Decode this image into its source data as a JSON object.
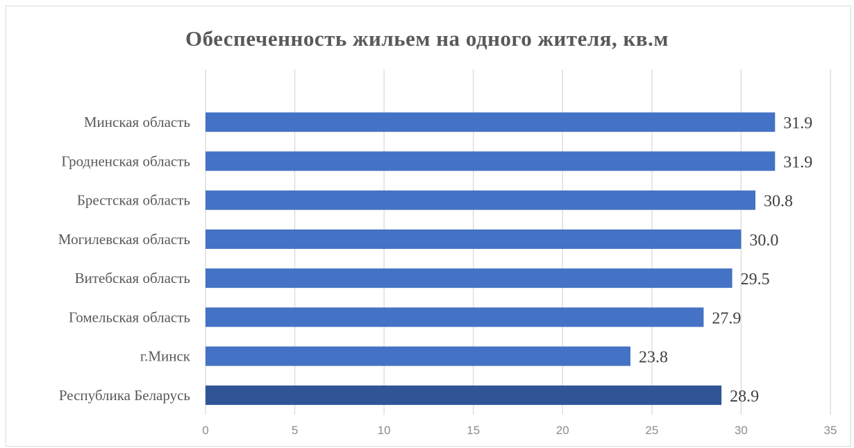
{
  "chart_data": {
    "type": "bar",
    "orientation": "horizontal",
    "title": "Обеспеченность жильем на одного жителя, кв.м",
    "categories": [
      "Минская область",
      "Гродненская область",
      "Брестская область",
      "Могилевская область",
      "Витебская область",
      "Гомельская область",
      "г.Минск",
      "Республика Беларусь"
    ],
    "values": [
      31.9,
      31.9,
      30.8,
      30.0,
      29.5,
      27.9,
      23.8,
      28.9
    ],
    "data_labels": [
      "31.9",
      "31.9",
      "30.8",
      "30.0",
      "29.5",
      "27.9",
      "23.8",
      "28.9"
    ],
    "xlim": [
      0,
      35
    ],
    "x_ticks": [
      0,
      5,
      10,
      15,
      20,
      25,
      30,
      35
    ],
    "grid": true,
    "legend": "none",
    "colors": {
      "bar": "#4472c4",
      "bar_highlight": "#2f5597",
      "grid": "#d9d9d9",
      "text": "#595959"
    },
    "highlight_category": "Республика Беларусь"
  }
}
